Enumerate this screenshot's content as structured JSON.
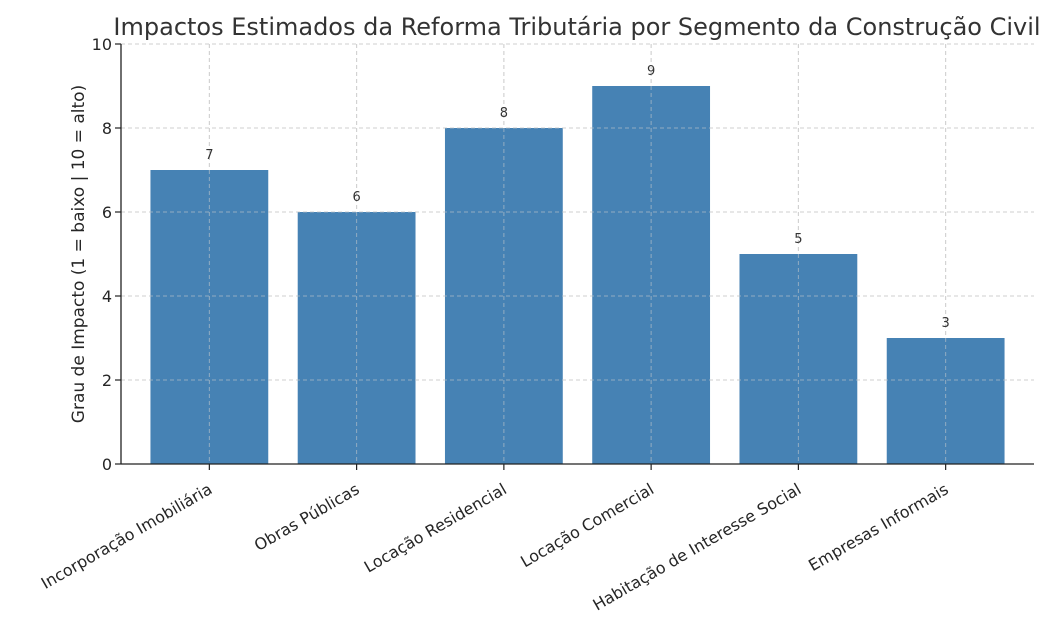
{
  "chart_data": {
    "type": "bar",
    "title": "Impactos Estimados da Reforma Tributária por Segmento da Construção Civil",
    "xlabel": "",
    "ylabel": "Grau de Impacto (1 = baixo | 10 = alto)",
    "categories": [
      "Incorporação Imobiliária",
      "Obras Públicas",
      "Locação Residencial",
      "Locação Comercial",
      "Habitação de Interesse Social",
      "Empresas Informais"
    ],
    "values": [
      7,
      6,
      8,
      9,
      5,
      3
    ],
    "ylim": [
      0,
      10
    ],
    "yticks": [
      0,
      2,
      4,
      6,
      8,
      10
    ],
    "grid": true,
    "bar_color": "#4682b4",
    "data_labels": [
      "7",
      "6",
      "8",
      "9",
      "5",
      "3"
    ]
  }
}
